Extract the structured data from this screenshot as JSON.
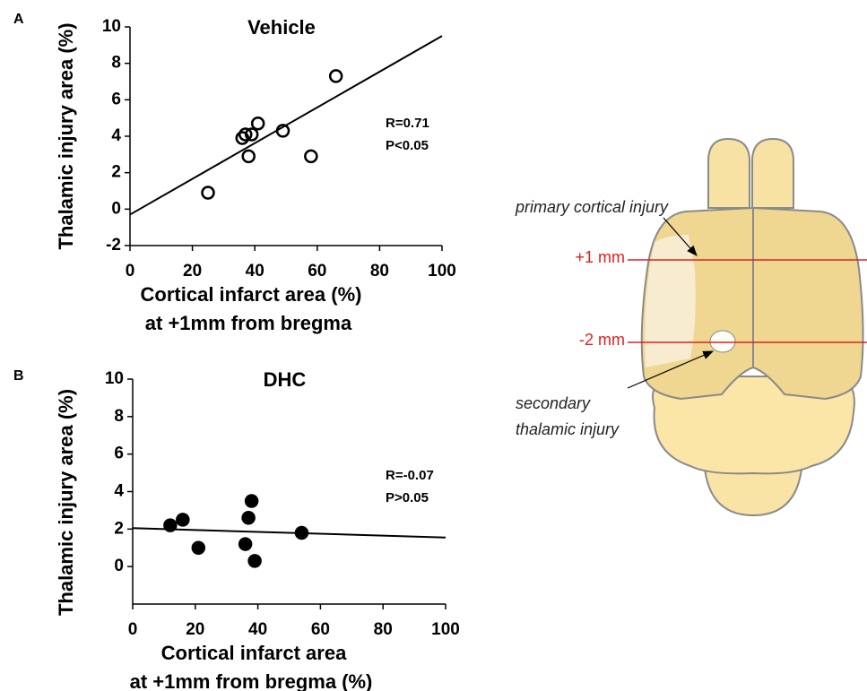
{
  "chart_data": [
    {
      "type": "scatter",
      "panel": "A",
      "title": "Vehicle",
      "xlabel": [
        "Cortical infarct area (%)",
        "at +1mm from bregma"
      ],
      "ylabel": "Thalamic injury area (%)",
      "x": [
        25,
        36,
        37,
        39,
        38,
        41,
        49,
        58,
        66
      ],
      "values": [
        0.9,
        3.9,
        4.1,
        4.1,
        2.9,
        4.7,
        4.3,
        2.9,
        7.3
      ],
      "marker_fill": "none",
      "color": "#000000",
      "fit": {
        "x": [
          0,
          100
        ],
        "y": [
          -0.3,
          9.5
        ]
      },
      "annotations": [
        "R=0.71",
        "P<0.05"
      ],
      "xlim": [
        0,
        100
      ],
      "xticks": [
        0,
        20,
        40,
        60,
        80,
        100
      ],
      "ylim": [
        -2,
        10
      ],
      "yticks": [
        -2,
        0,
        2,
        4,
        6,
        8,
        10
      ]
    },
    {
      "type": "scatter",
      "panel": "B",
      "title": "DHC",
      "xlabel": [
        "Cortical infarct area",
        "at +1mm from bregma (%)"
      ],
      "ylabel": "Thalamic injury area (%)",
      "x": [
        12,
        16,
        21,
        37,
        38,
        36,
        39,
        54
      ],
      "values": [
        2.2,
        2.5,
        1.0,
        2.6,
        3.5,
        1.2,
        0.3,
        1.8
      ],
      "marker_fill": "#000000",
      "color": "#000000",
      "fit": {
        "x": [
          0,
          100
        ],
        "y": [
          2.05,
          1.55
        ]
      },
      "annotations": [
        "R=-0.07",
        "P>0.05"
      ],
      "xlim": [
        0,
        100
      ],
      "xticks": [
        0,
        20,
        40,
        60,
        80,
        100
      ],
      "ylim": [
        -2,
        10
      ],
      "yticks": [
        0,
        2,
        4,
        6,
        8,
        10
      ]
    }
  ],
  "diagram": {
    "primary": "primary cortical injury",
    "plus1": "+1 mm",
    "minus2": "-2 mm",
    "secondary": [
      "secondary",
      "thalamic injury"
    ]
  }
}
